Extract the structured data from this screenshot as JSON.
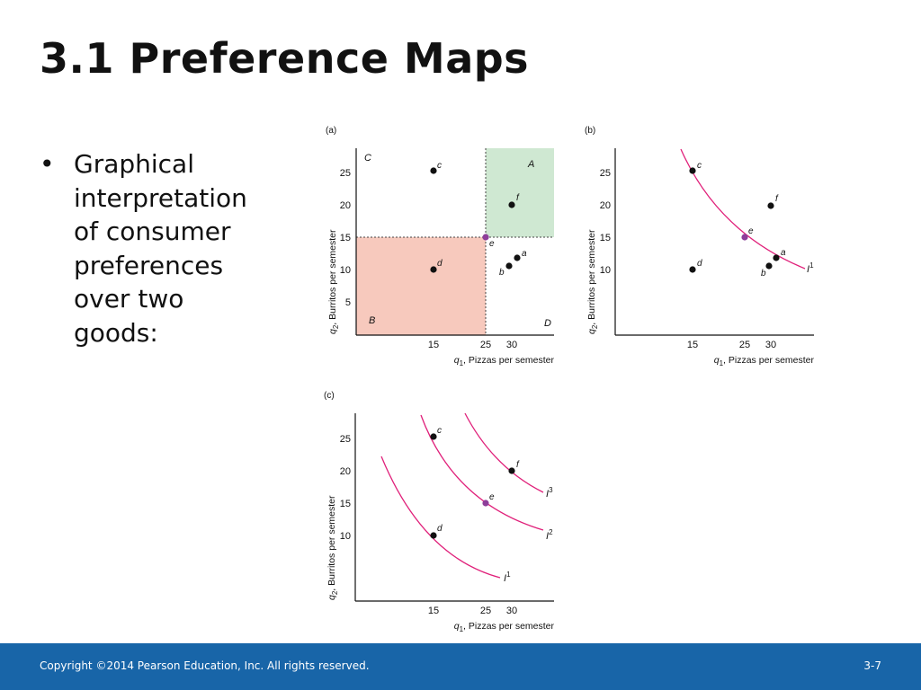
{
  "slide": {
    "title": "3.1  Preference Maps",
    "bullet_symbol": "•",
    "bullet_text": "Graphical interpretation of consumer preferences over two goods:"
  },
  "footer": {
    "copyright": "Copyright ©2014 Pearson Education, Inc. All rights reserved.",
    "page": "3-7"
  },
  "colors": {
    "footer_bg": "#1865a8",
    "region_A": "#cfe8d2",
    "region_B": "#f7c9bd",
    "curve": "#e0207a",
    "point_e": "#8e3e9a",
    "point": "#111111"
  },
  "panels": {
    "a": {
      "label": "(a)",
      "xlabel_var": "q",
      "xlabel_sub": "1",
      "xlabel_rest": ", Pizzas per semester",
      "ylabel_var": "q",
      "ylabel_sub": "2",
      "ylabel_rest": ", Burritos per semester",
      "xticks": [
        "15",
        "25",
        "30"
      ],
      "yticks": [
        "25",
        "20",
        "15",
        "10",
        "5"
      ],
      "regions": {
        "A": "A",
        "B": "B",
        "C": "C",
        "D": "D"
      },
      "points": {
        "a": "a",
        "b": "b",
        "c": "c",
        "d": "d",
        "e": "e",
        "f": "f"
      }
    },
    "b": {
      "label": "(b)",
      "xlabel_var": "q",
      "xlabel_sub": "1",
      "xlabel_rest": ", Pizzas per semester",
      "ylabel_var": "q",
      "ylabel_sub": "2",
      "ylabel_rest": ", Burritos per semester",
      "xticks": [
        "15",
        "25",
        "30"
      ],
      "yticks": [
        "25",
        "20",
        "15",
        "10"
      ],
      "points": {
        "a": "a",
        "b": "b",
        "c": "c",
        "d": "d",
        "e": "e",
        "f": "f"
      },
      "curve_label": "I",
      "curve_sup": "1"
    },
    "c": {
      "label": "(c)",
      "xlabel_var": "q",
      "xlabel_sub": "1",
      "xlabel_rest": ", Pizzas per semester",
      "ylabel_var": "q",
      "ylabel_sub": "2",
      "ylabel_rest": ", Burritos per semester",
      "xticks": [
        "15",
        "25",
        "30"
      ],
      "yticks": [
        "25",
        "20",
        "15",
        "10"
      ],
      "points": {
        "c": "c",
        "d": "d",
        "e": "e",
        "f": "f"
      },
      "curves": [
        {
          "label": "I",
          "sup": "1"
        },
        {
          "label": "I",
          "sup": "2"
        },
        {
          "label": "I",
          "sup": "3"
        }
      ]
    }
  },
  "chart_data": [
    {
      "type": "scatter",
      "title": "(a)",
      "xlabel": "q1, Pizzas per semester",
      "ylabel": "q2, Burritos per semester",
      "points": [
        {
          "name": "a",
          "x": 30,
          "y": 12
        },
        {
          "name": "b",
          "x": 28.5,
          "y": 10.5
        },
        {
          "name": "c",
          "x": 15,
          "y": 25
        },
        {
          "name": "d",
          "x": 15,
          "y": 10
        },
        {
          "name": "e",
          "x": 25,
          "y": 15
        },
        {
          "name": "f",
          "x": 30,
          "y": 20
        }
      ],
      "regions": [
        "A (x≥25, y≥15)",
        "B (x≤25, y≤15)",
        "C",
        "D"
      ]
    },
    {
      "type": "line",
      "title": "(b)",
      "xlabel": "q1, Pizzas per semester",
      "ylabel": "q2, Burritos per semester",
      "points": [
        {
          "name": "a",
          "x": 30,
          "y": 12
        },
        {
          "name": "b",
          "x": 28.5,
          "y": 10.5
        },
        {
          "name": "c",
          "x": 15,
          "y": 25
        },
        {
          "name": "d",
          "x": 15,
          "y": 10
        },
        {
          "name": "e",
          "x": 25,
          "y": 15
        },
        {
          "name": "f",
          "x": 30,
          "y": 20
        }
      ],
      "series": [
        {
          "name": "I1",
          "passes_through": [
            "c",
            "e",
            "a"
          ]
        }
      ]
    },
    {
      "type": "line",
      "title": "(c)",
      "xlabel": "q1, Pizzas per semester",
      "ylabel": "q2, Burritos per semester",
      "points": [
        {
          "name": "c",
          "x": 15,
          "y": 25
        },
        {
          "name": "d",
          "x": 15,
          "y": 10
        },
        {
          "name": "e",
          "x": 25,
          "y": 15
        },
        {
          "name": "f",
          "x": 30,
          "y": 20
        }
      ],
      "series": [
        {
          "name": "I1",
          "passes_through": [
            "d"
          ]
        },
        {
          "name": "I2",
          "passes_through": [
            "c",
            "e"
          ]
        },
        {
          "name": "I3",
          "passes_through": [
            "f"
          ]
        }
      ]
    }
  ]
}
